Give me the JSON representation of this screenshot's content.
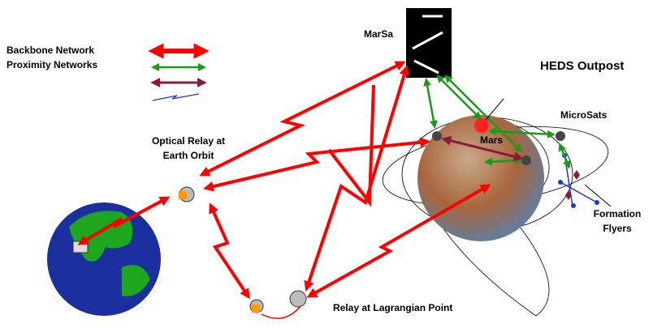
{
  "legend": {
    "items": [
      "Backbone Network",
      "Proximity Networks"
    ]
  },
  "labels": {
    "marsat": "MarSa",
    "heds": "HEDS Outpost",
    "microsats": "MicroSats",
    "mars": "Mars",
    "optical_relay": [
      "Optical Relay at",
      "Earth Orbit"
    ],
    "formation": [
      "Formation",
      "Flyers"
    ],
    "lagrangian": "Relay at Lagrangian Point"
  }
}
